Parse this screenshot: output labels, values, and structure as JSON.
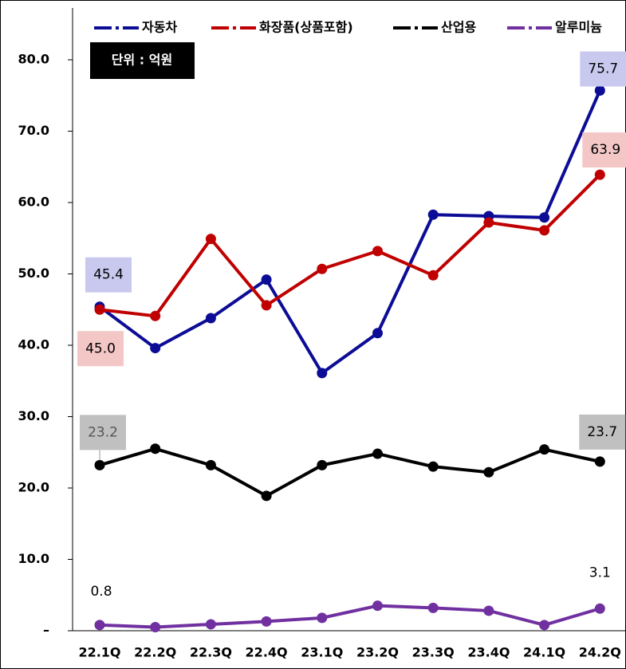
{
  "chart_data": {
    "type": "line",
    "annotation": "단위 : 억원",
    "categories": [
      "22.1Q",
      "22.2Q",
      "22.3Q",
      "22.4Q",
      "23.1Q",
      "23.2Q",
      "23.3Q",
      "23.4Q",
      "24.1Q",
      "24.2Q"
    ],
    "series": [
      {
        "name": "자동차",
        "color": "#0c0c96",
        "label_fill": "#c9c9ef",
        "values": [
          45.4,
          39.6,
          43.8,
          49.2,
          36.1,
          41.7,
          58.3,
          58.1,
          57.9,
          75.7
        ],
        "value_labels": [
          "45.4",
          null,
          null,
          null,
          null,
          null,
          null,
          null,
          null,
          "75.7"
        ]
      },
      {
        "name": "화장품(상품포함)",
        "color": "#c00000",
        "label_fill": "#f4c7c7",
        "values": [
          45.0,
          44.1,
          54.9,
          45.6,
          50.7,
          53.2,
          49.8,
          57.2,
          56.1,
          63.9
        ],
        "value_labels": [
          "45.0",
          null,
          null,
          null,
          null,
          null,
          null,
          null,
          null,
          "63.9"
        ]
      },
      {
        "name": "산업용",
        "color": "#000000",
        "label_fill": "#c0c0c0",
        "values": [
          23.2,
          25.5,
          23.2,
          18.9,
          23.2,
          24.8,
          23.0,
          22.2,
          25.4,
          23.7
        ],
        "value_labels": [
          "23.2",
          null,
          null,
          null,
          null,
          null,
          null,
          null,
          null,
          "23.7"
        ]
      },
      {
        "name": "알루미늄",
        "color": "#7030a0",
        "values": [
          0.8,
          0.5,
          0.9,
          1.3,
          1.8,
          3.5,
          3.2,
          2.8,
          0.8,
          3.1
        ],
        "value_labels": [
          "0.8",
          null,
          null,
          null,
          null,
          null,
          null,
          null,
          null,
          "3.1"
        ]
      }
    ],
    "ylim": [
      0,
      80
    ],
    "yticks": [
      {
        "value": 0,
        "label": "–"
      },
      {
        "value": 10,
        "label": "10.0"
      },
      {
        "value": 20,
        "label": "20.0"
      },
      {
        "value": 30,
        "label": "30.0"
      },
      {
        "value": 40,
        "label": "40.0"
      },
      {
        "value": 50,
        "label": "50.0"
      },
      {
        "value": 60,
        "label": "60.0"
      },
      {
        "value": 70,
        "label": "70.0"
      },
      {
        "value": 80,
        "label": "80.0"
      }
    ],
    "legend": "top",
    "grid": false
  }
}
